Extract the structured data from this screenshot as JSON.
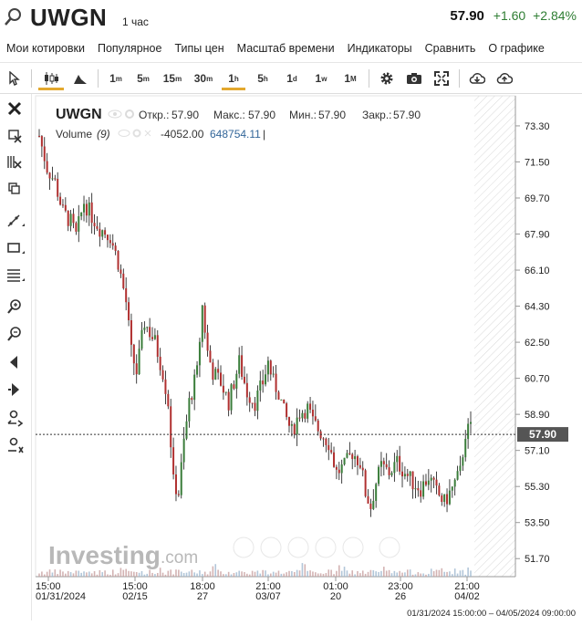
{
  "header": {
    "symbol": "UWGN",
    "timeframe": "1 час",
    "price": "57.90",
    "change": "+1.60",
    "change_pct": "+2.84%"
  },
  "menu": [
    "Мои котировки",
    "Популярное",
    "Типы цен",
    "Масштаб времени",
    "Индикаторы",
    "Сравнить",
    "О графике"
  ],
  "toolbar": {
    "intervals": [
      {
        "main": "1",
        "sup": "m"
      },
      {
        "main": "5",
        "sup": "m"
      },
      {
        "main": "15",
        "sup": "m"
      },
      {
        "main": "30",
        "sup": "m"
      },
      {
        "main": "1",
        "sup": "h"
      },
      {
        "main": "5",
        "sup": "h"
      },
      {
        "main": "1",
        "sup": "d"
      },
      {
        "main": "1",
        "sup": "w"
      },
      {
        "main": "1",
        "sup": "M"
      }
    ],
    "selected_interval": "1h"
  },
  "legend": {
    "symbol": "UWGN",
    "open_label": "Откр.:",
    "open": "57.90",
    "high_label": "Макс.:",
    "high": "57.90",
    "low_label": "Мин.:",
    "low": "57.90",
    "close_label": "Закр.:",
    "close": "57.90",
    "volume_label": "Volume",
    "volume_param": "(9)",
    "volume_val1": "-4052.00",
    "volume_val2": "648754.11"
  },
  "watermark": {
    "brand": "Investing",
    "suffix": ".com"
  },
  "range_label": "01/31/2024 15:00:00 – 04/05/2024 09:00:00",
  "chart_data": {
    "type": "candlestick",
    "y_ticks": [
      "73.30",
      "71.50",
      "69.70",
      "67.90",
      "66.10",
      "64.30",
      "62.50",
      "60.70",
      "58.90",
      "57.10",
      "55.30",
      "53.50",
      "51.70"
    ],
    "ylim": [
      50.8,
      74.8
    ],
    "current_price": "57.90",
    "x_ticks": [
      {
        "time": "15:00",
        "date": "01/31/2024"
      },
      {
        "time": "15:00",
        "date": "02/15"
      },
      {
        "time": "18:00",
        "date": "27"
      },
      {
        "time": "21:00",
        "date": "03/07"
      },
      {
        "time": "01:00",
        "date": "20"
      },
      {
        "time": "23:00",
        "date": "26"
      },
      {
        "time": "21:00",
        "date": "04/02"
      }
    ],
    "price_path": [
      [
        0,
        72.8
      ],
      [
        3,
        71.2
      ],
      [
        6,
        70.5
      ],
      [
        9,
        69.0
      ],
      [
        12,
        68.5
      ],
      [
        14,
        67.8
      ],
      [
        17,
        69.5
      ],
      [
        20,
        68.8
      ],
      [
        23,
        68.2
      ],
      [
        27,
        67.8
      ],
      [
        30,
        66.5
      ],
      [
        33,
        64.5
      ],
      [
        35,
        62.0
      ],
      [
        37,
        61.0
      ],
      [
        40,
        63.5
      ],
      [
        44,
        62.5
      ],
      [
        47,
        61.0
      ],
      [
        49,
        59.5
      ],
      [
        51,
        55.5
      ],
      [
        53,
        55.0
      ],
      [
        55,
        57.5
      ],
      [
        57,
        59.5
      ],
      [
        60,
        61.0
      ],
      [
        62,
        64.3
      ],
      [
        64,
        62.0
      ],
      [
        66,
        61.0
      ],
      [
        69,
        60.5
      ],
      [
        72,
        59.5
      ],
      [
        74,
        60.5
      ],
      [
        76,
        61.5
      ],
      [
        79,
        60.0
      ],
      [
        82,
        59.5
      ],
      [
        85,
        60.5
      ],
      [
        87,
        61.5
      ],
      [
        89,
        60.5
      ],
      [
        91,
        60.0
      ],
      [
        93,
        59.0
      ],
      [
        96,
        58.0
      ],
      [
        99,
        59.0
      ],
      [
        102,
        59.2
      ],
      [
        104,
        58.5
      ],
      [
        107,
        58.0
      ],
      [
        110,
        57.5
      ],
      [
        113,
        56.0
      ],
      [
        116,
        56.3
      ],
      [
        119,
        57.0
      ],
      [
        122,
        56.5
      ],
      [
        124,
        55.0
      ],
      [
        126,
        54.3
      ],
      [
        128,
        55.5
      ],
      [
        130,
        56.3
      ],
      [
        133,
        56.0
      ],
      [
        136,
        56.5
      ],
      [
        139,
        56.0
      ],
      [
        142,
        55.5
      ],
      [
        145,
        55.2
      ],
      [
        148,
        55.8
      ],
      [
        151,
        55.0
      ],
      [
        154,
        54.5
      ],
      [
        157,
        55.2
      ],
      [
        160,
        56.0
      ],
      [
        162,
        58.0
      ],
      [
        164,
        58.2
      ]
    ],
    "n_bars": 165
  }
}
